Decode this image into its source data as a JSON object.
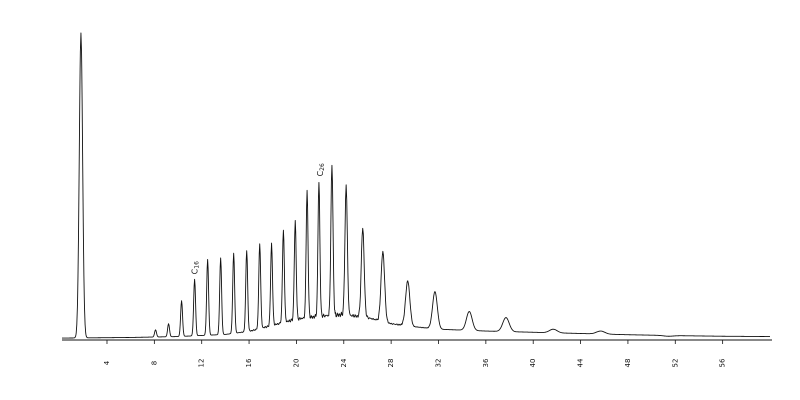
{
  "chart_data": {
    "type": "line",
    "title": "",
    "xlabel": "",
    "ylabel": "",
    "x_ticks": [
      4,
      8,
      12,
      16,
      20,
      24,
      28,
      32,
      36,
      40,
      44,
      48,
      52,
      56
    ],
    "xlim": [
      0.2,
      60
    ],
    "ylim": [
      0,
      100
    ],
    "grid": false,
    "line_color": "#111111",
    "baseline": [
      [
        0.2,
        0.3
      ],
      [
        6,
        0.5
      ],
      [
        10,
        0.8
      ],
      [
        14,
        1.5
      ],
      [
        16,
        2.5
      ],
      [
        18,
        4.5
      ],
      [
        20,
        6.5
      ],
      [
        22,
        7.5
      ],
      [
        24,
        8.0
      ],
      [
        26,
        7.0
      ],
      [
        28,
        5.0
      ],
      [
        30,
        4.0
      ],
      [
        32,
        3.2
      ],
      [
        36,
        2.6
      ],
      [
        40,
        2.2
      ],
      [
        44,
        1.8
      ],
      [
        48,
        1.4
      ],
      [
        52,
        1.1
      ],
      [
        56,
        0.9
      ],
      [
        60,
        0.8
      ]
    ],
    "peaks": [
      {
        "x": 1.8,
        "y": 100,
        "w": 0.14
      },
      {
        "x": 8.1,
        "y": 3.0,
        "w": 0.08
      },
      {
        "x": 9.2,
        "y": 5.0,
        "w": 0.08
      },
      {
        "x": 10.3,
        "y": 12.5,
        "w": 0.08
      },
      {
        "x": 11.4,
        "y": 19.5,
        "w": 0.08
      },
      {
        "x": 12.5,
        "y": 26.0,
        "w": 0.08
      },
      {
        "x": 13.6,
        "y": 26.5,
        "w": 0.08
      },
      {
        "x": 14.7,
        "y": 28.0,
        "w": 0.08
      },
      {
        "x": 15.8,
        "y": 29.0,
        "w": 0.08
      },
      {
        "x": 16.9,
        "y": 31.0,
        "w": 0.08
      },
      {
        "x": 17.9,
        "y": 31.0,
        "w": 0.08
      },
      {
        "x": 18.9,
        "y": 35.5,
        "w": 0.08
      },
      {
        "x": 19.9,
        "y": 38.5,
        "w": 0.08
      },
      {
        "x": 20.9,
        "y": 48.5,
        "w": 0.08
      },
      {
        "x": 21.9,
        "y": 51.5,
        "w": 0.08
      },
      {
        "x": 23.0,
        "y": 57.0,
        "w": 0.09
      },
      {
        "x": 24.2,
        "y": 50.5,
        "w": 0.1
      },
      {
        "x": 25.6,
        "y": 36.5,
        "w": 0.12
      },
      {
        "x": 27.3,
        "y": 28.5,
        "w": 0.15
      },
      {
        "x": 29.4,
        "y": 19.0,
        "w": 0.18
      },
      {
        "x": 31.7,
        "y": 15.5,
        "w": 0.2
      },
      {
        "x": 34.6,
        "y": 9.0,
        "w": 0.24
      },
      {
        "x": 37.7,
        "y": 7.0,
        "w": 0.27
      },
      {
        "x": 41.7,
        "y": 3.2,
        "w": 0.32
      },
      {
        "x": 45.7,
        "y": 2.6,
        "w": 0.35
      },
      {
        "x": 51.4,
        "y": 0.9,
        "w": 0.4
      }
    ],
    "annotations": [
      {
        "text": "C16",
        "x": 11.4,
        "y": 19.5
      },
      {
        "text": "C26",
        "x": 22.0,
        "y": 51.5
      }
    ]
  }
}
